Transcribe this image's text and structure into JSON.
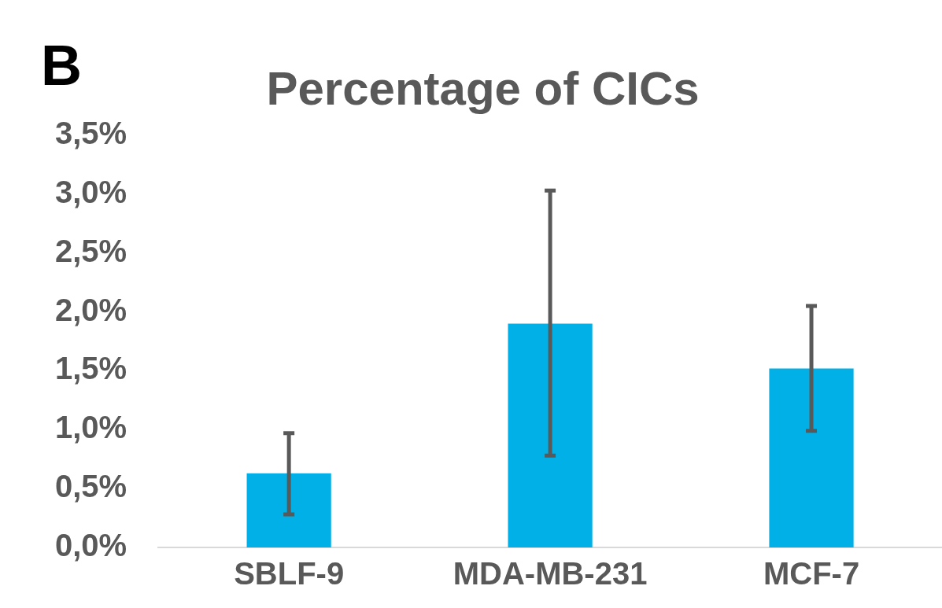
{
  "chart_data": {
    "type": "bar",
    "title": "Percentage of CICs",
    "annotations": [
      "B"
    ],
    "categories": [
      "SBLF-9",
      "MDA-MB-231",
      "MCF-7"
    ],
    "values": [
      0.63,
      1.9,
      1.52
    ],
    "errors": [
      [
        0.28,
        0.97
      ],
      [
        0.78,
        3.03
      ],
      [
        0.99,
        2.05
      ]
    ],
    "color": "#00b0e6",
    "ylim": [
      0,
      3.5
    ],
    "yticks": [
      {
        "value": 0,
        "label": "0,0%"
      },
      {
        "value": 0.5,
        "label": "0,5%"
      },
      {
        "value": 1,
        "label": "1,0%"
      },
      {
        "value": 1.5,
        "label": "1,5%"
      },
      {
        "value": 2,
        "label": "2,0%"
      },
      {
        "value": 2.5,
        "label": "2,5%"
      },
      {
        "value": 3,
        "label": "3,0%"
      },
      {
        "value": 3.5,
        "label": "3,5%"
      }
    ],
    "grid": false,
    "legend": false
  }
}
